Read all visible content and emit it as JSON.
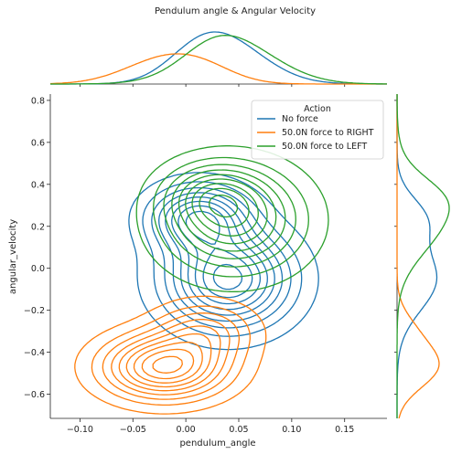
{
  "chart_data": {
    "type": "kde-joint",
    "title": "Pendulum angle & Angular Velocity",
    "xlabel": "pendulum_angle",
    "ylabel": "angular_velocity",
    "xlim": [
      -0.128,
      0.19
    ],
    "ylim": [
      -0.715,
      0.83
    ],
    "x_ticks": [
      -0.1,
      -0.05,
      0.0,
      0.05,
      0.1,
      0.15
    ],
    "x_tick_labels": [
      "−0.10",
      "−0.05",
      "0.00",
      "0.05",
      "0.10",
      "0.15"
    ],
    "y_ticks": [
      -0.6,
      -0.4,
      -0.2,
      0.0,
      0.2,
      0.4,
      0.6,
      0.8
    ],
    "y_tick_labels": [
      "−0.6",
      "−0.4",
      "−0.2",
      "0.0",
      "0.2",
      "0.4",
      "0.6",
      "0.8"
    ],
    "legend": {
      "title": "Action",
      "placement": "top-right",
      "entries": [
        "No force",
        "50.0N force to RIGHT",
        "50.0N force to LEFT"
      ]
    },
    "series": [
      {
        "name": "No force",
        "color": "#1f77b4",
        "centers": [
          {
            "x": 0.04,
            "y": -0.05,
            "sx": 0.038,
            "sy": 0.15,
            "w": 1.0
          },
          {
            "x": 0.012,
            "y": 0.24,
            "sx": 0.03,
            "sy": 0.1,
            "w": 0.8
          }
        ],
        "marginal_x_peak": 0.045,
        "marginal_y_peaks": [
          0.28,
          -0.07
        ]
      },
      {
        "name": "50.0N force to RIGHT",
        "color": "#ff7f0e",
        "centers": [
          {
            "x": -0.02,
            "y": -0.47,
            "sx": 0.038,
            "sy": 0.1,
            "w": 1.0
          },
          {
            "x": 0.018,
            "y": -0.3,
            "sx": 0.03,
            "sy": 0.09,
            "w": 0.45
          }
        ],
        "marginal_x_peak": -0.02,
        "marginal_y_peaks": [
          -0.46
        ]
      },
      {
        "name": "50.0N force to LEFT",
        "color": "#2ca02c",
        "centers": [
          {
            "x": 0.045,
            "y": 0.23,
            "sx": 0.042,
            "sy": 0.16,
            "w": 1.0
          },
          {
            "x": 0.025,
            "y": 0.35,
            "sx": 0.028,
            "sy": 0.09,
            "w": 0.5
          }
        ],
        "marginal_x_peak": 0.035,
        "marginal_y_peaks": [
          0.33,
          0.12
        ]
      }
    ],
    "contour_levels": 9,
    "grid": false
  }
}
